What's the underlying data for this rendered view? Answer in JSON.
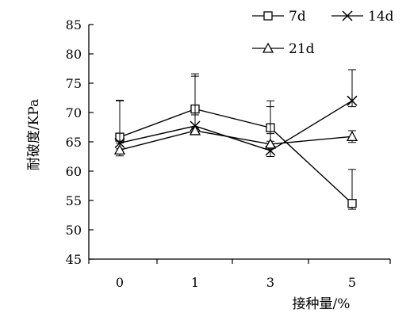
{
  "chart_data": {
    "type": "line",
    "categories": [
      "0",
      "1",
      "3",
      "5"
    ],
    "xlabel": "接种量/%",
    "ylabel": "耐破度/KPa",
    "ylim": [
      45,
      85
    ],
    "yticks": [
      "45",
      "50",
      "55",
      "60",
      "65",
      "70",
      "75",
      "80",
      "85"
    ],
    "grid": false,
    "legend_position": "top-right",
    "series": [
      {
        "name": "7d",
        "marker": "square",
        "values": [
          65.8,
          70.6,
          67.4,
          54.5
        ],
        "error": [
          6.3,
          6.0,
          4.6,
          5.8
        ]
      },
      {
        "name": "14d",
        "marker": "x",
        "values": [
          64.8,
          67.7,
          63.5,
          72.0
        ],
        "error": [
          7.2,
          8.5,
          7.5,
          5.3
        ]
      },
      {
        "name": "21d",
        "marker": "triangle",
        "values": [
          63.6,
          66.9,
          64.6,
          65.9
        ],
        "error": [
          1.2,
          0.5,
          0.5,
          1.0
        ]
      }
    ]
  }
}
